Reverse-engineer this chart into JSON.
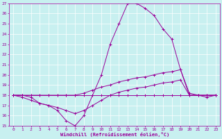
{
  "xlabel": "Windchill (Refroidissement éolien,°C)",
  "bg_color": "#c8f0f0",
  "line_color": "#990099",
  "grid_color": "#ffffff",
  "xlim": [
    -0.5,
    23.5
  ],
  "ylim": [
    15,
    27
  ],
  "yticks": [
    15,
    16,
    17,
    18,
    19,
    20,
    21,
    22,
    23,
    24,
    25,
    26,
    27
  ],
  "xticks": [
    0,
    1,
    2,
    3,
    4,
    5,
    6,
    7,
    8,
    9,
    10,
    11,
    12,
    13,
    14,
    15,
    16,
    17,
    18,
    19,
    20,
    21,
    22,
    23
  ],
  "series": [
    {
      "x": [
        0,
        1,
        2,
        3,
        4,
        5,
        6,
        7,
        8,
        9,
        10,
        11,
        12,
        13,
        14,
        15,
        16,
        17,
        18,
        19,
        20,
        21,
        22,
        23
      ],
      "y": [
        18,
        18,
        17.8,
        17.2,
        17.0,
        16.5,
        15.5,
        15.0,
        16.0,
        18.0,
        20.0,
        23.0,
        25.0,
        27.0,
        27.0,
        26.5,
        25.8,
        24.5,
        23.5,
        20.5,
        18.0,
        18.0,
        18.0,
        18.0
      ]
    },
    {
      "x": [
        0,
        1,
        2,
        3,
        4,
        5,
        6,
        7,
        8,
        9,
        10,
        11,
        12,
        13,
        14,
        15,
        16,
        17,
        18,
        19,
        20,
        21,
        22,
        23
      ],
      "y": [
        18,
        18,
        18,
        18,
        18,
        18,
        18,
        18,
        18,
        18,
        18,
        18,
        18,
        18,
        18,
        18,
        18,
        18,
        18,
        18,
        18,
        18,
        18,
        18
      ]
    },
    {
      "x": [
        0,
        1,
        2,
        3,
        4,
        5,
        6,
        7,
        8,
        9,
        10,
        11,
        12,
        13,
        14,
        15,
        16,
        17,
        18,
        19,
        20,
        21,
        22,
        23
      ],
      "y": [
        18,
        18,
        18,
        18,
        18,
        18,
        18,
        18,
        18.2,
        18.5,
        18.8,
        19.0,
        19.3,
        19.5,
        19.7,
        19.8,
        20.0,
        20.2,
        20.3,
        20.5,
        18.2,
        18.0,
        17.8,
        18.0
      ]
    },
    {
      "x": [
        0,
        1,
        2,
        3,
        4,
        5,
        6,
        7,
        8,
        9,
        10,
        11,
        12,
        13,
        14,
        15,
        16,
        17,
        18,
        19,
        20,
        21,
        22,
        23
      ],
      "y": [
        18,
        17.8,
        17.5,
        17.2,
        17.0,
        16.8,
        16.5,
        16.2,
        16.5,
        17.0,
        17.5,
        18.0,
        18.3,
        18.5,
        18.7,
        18.8,
        19.0,
        19.2,
        19.3,
        19.5,
        18.0,
        18.0,
        18.0,
        18.0
      ]
    }
  ]
}
